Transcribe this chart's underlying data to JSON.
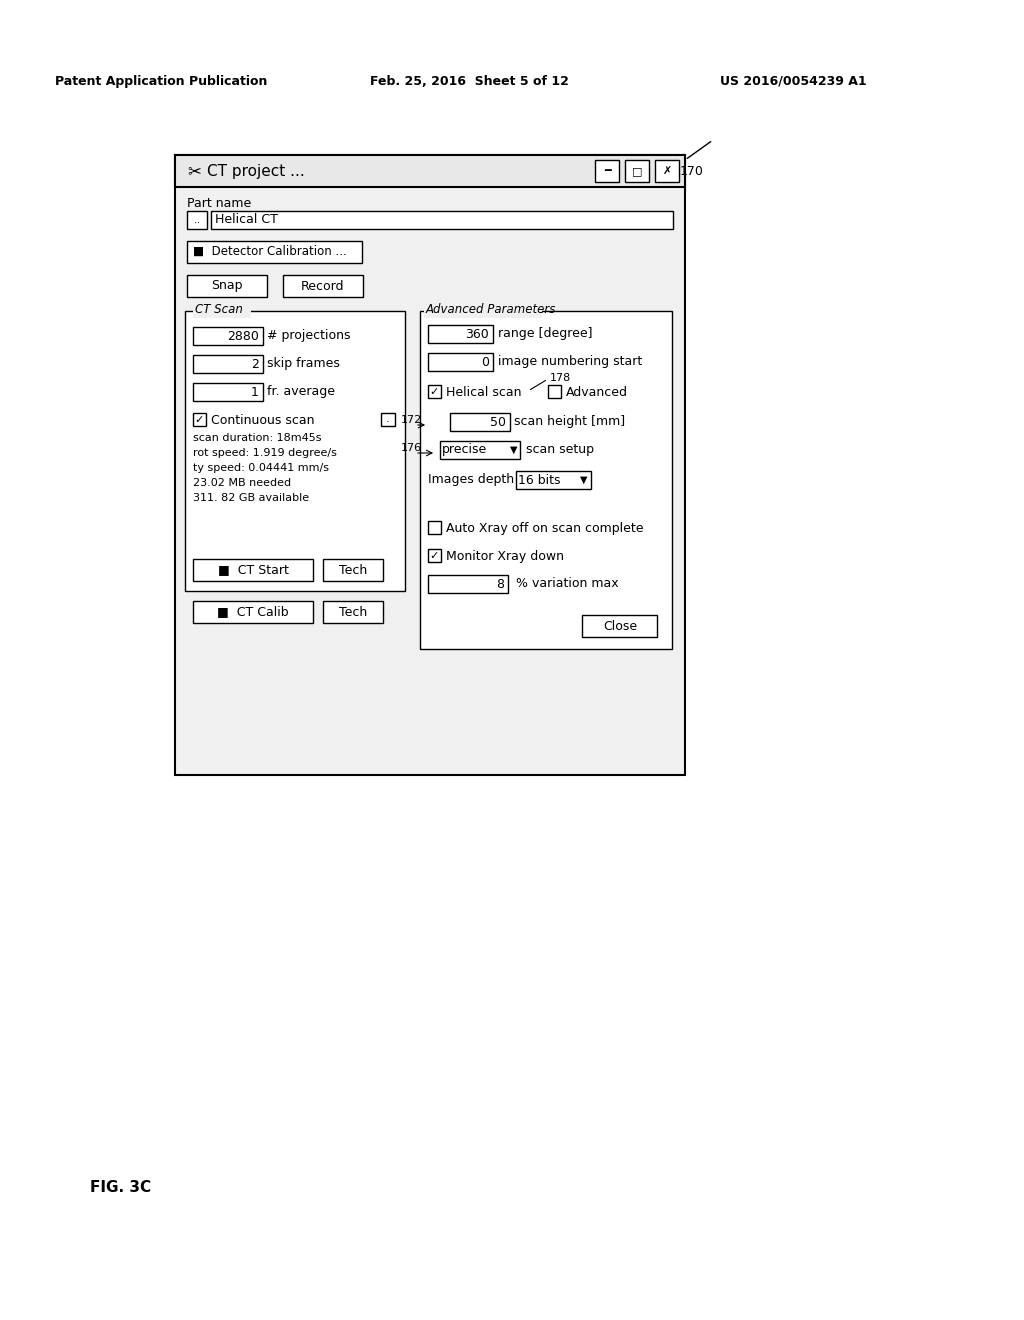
{
  "header_left": "Patent Application Publication",
  "header_center": "Feb. 25, 2016  Sheet 5 of 12",
  "header_right": "US 2016/0054239 A1",
  "figure_label": "FIG. 3C",
  "label_170": "170",
  "label_172": "172",
  "label_176": "176",
  "label_178": "178",
  "dialog_title": "✔  CT project ...",
  "part_name_label": "Part name",
  "part_name_value": "Helical CT",
  "detector_btn": "■  Detector Calibration ...",
  "snap_btn": "Snap",
  "record_btn": "Record",
  "ct_scan_label": "CT Scan",
  "projections_value": "2880",
  "projections_label": "# projections",
  "skip_frames_value": "2",
  "skip_frames_label": "skip frames",
  "fr_average_value": "1",
  "fr_average_label": "fr. average",
  "continuous_scan_label": "Continuous scan",
  "info_text": "scan duration: 18m45s\nrot speed: 1.919 degree/s\nty speed: 0.04441 mm/s\n23.02 MB needed\n311. 82 GB available",
  "ct_start_btn": "■  CT Start",
  "tech_btn1": "Tech",
  "ct_calib_btn": "■  CT Calib",
  "tech_btn2": "Tech",
  "adv_params_label": "Advanced Parameters",
  "range_value": "360",
  "range_label": "range [degree]",
  "img_num_value": "0",
  "img_num_label": "image numbering start",
  "helical_scan_label": "Helical scan",
  "advanced_label": "Advanced",
  "scan_height_value": "50",
  "scan_height_label": "scan height [mm]",
  "scan_setup_value": "precise ▼",
  "scan_setup_label": "scan setup",
  "images_depth_label": "Images depth",
  "images_depth_value": "16 bits  ▼",
  "auto_xray_label": "Auto Xray off on scan complete",
  "monitor_xray_label": "Monitor Xray down",
  "variation_value": "8",
  "variation_label": "% variation max",
  "close_btn": "Close",
  "bg_color": "#ffffff",
  "border_color": "#000000",
  "text_color": "#000000"
}
